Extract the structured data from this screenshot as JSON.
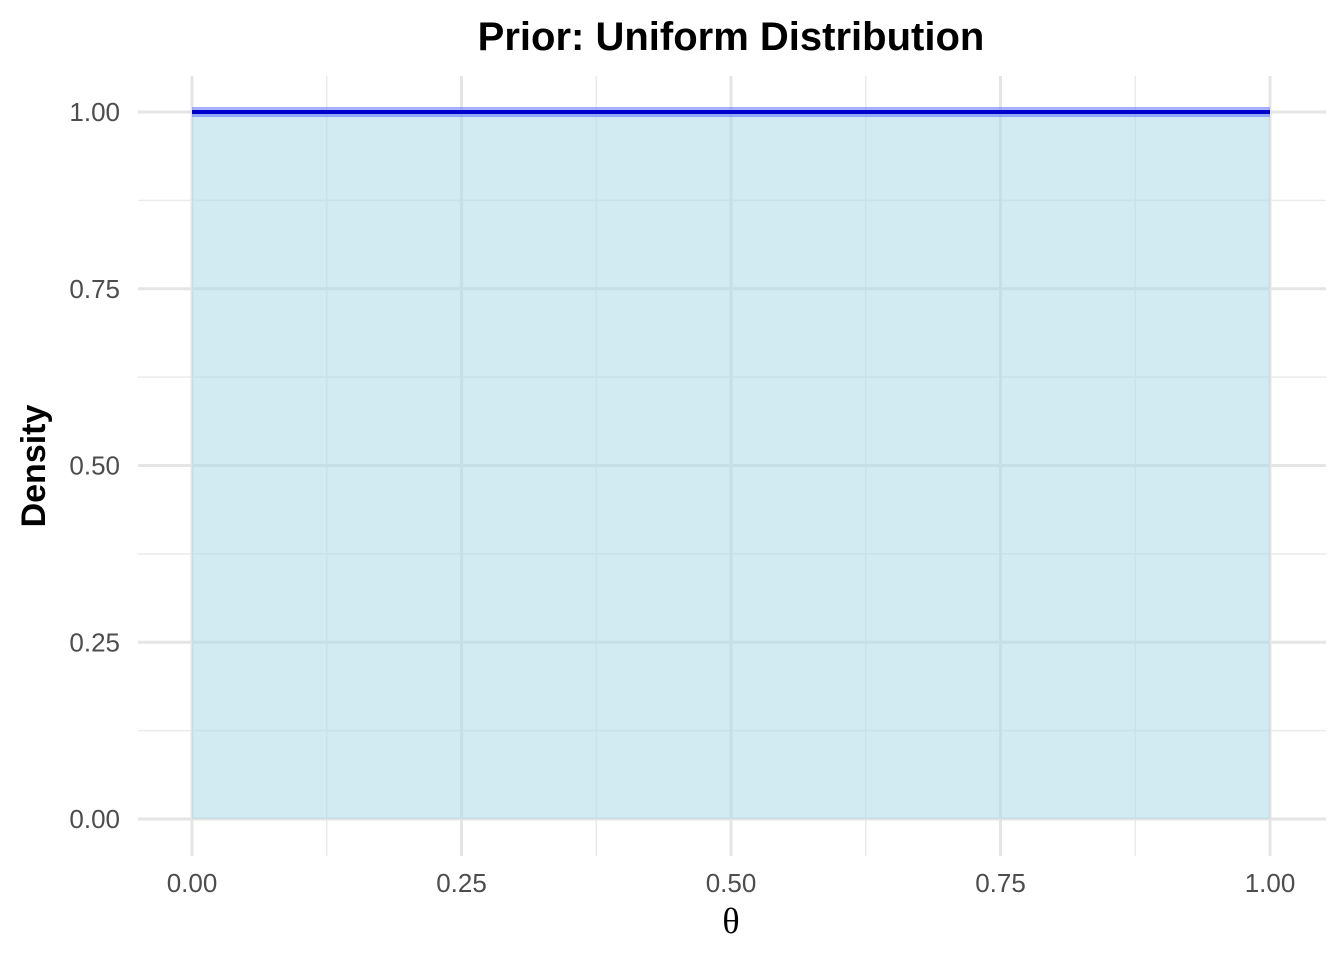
{
  "chart_data": {
    "type": "area",
    "title": "Prior: Uniform Distribution",
    "xlabel": "θ",
    "ylabel": "Density",
    "xlim": [
      0,
      1
    ],
    "ylim": [
      0,
      1
    ],
    "x_ticks": [
      "0.00",
      "0.25",
      "0.50",
      "0.75",
      "1.00"
    ],
    "x_tick_values": [
      0,
      0.25,
      0.5,
      0.75,
      1
    ],
    "y_ticks": [
      "0.00",
      "0.25",
      "0.50",
      "0.75",
      "1.00"
    ],
    "y_tick_values": [
      0,
      0.25,
      0.5,
      0.75,
      1
    ],
    "grid": true,
    "legend": "none",
    "series": [
      {
        "x": [
          0,
          1
        ],
        "y": [
          1,
          1
        ],
        "line_color": "#0000cc",
        "fill_color": "#add8e6"
      }
    ]
  }
}
